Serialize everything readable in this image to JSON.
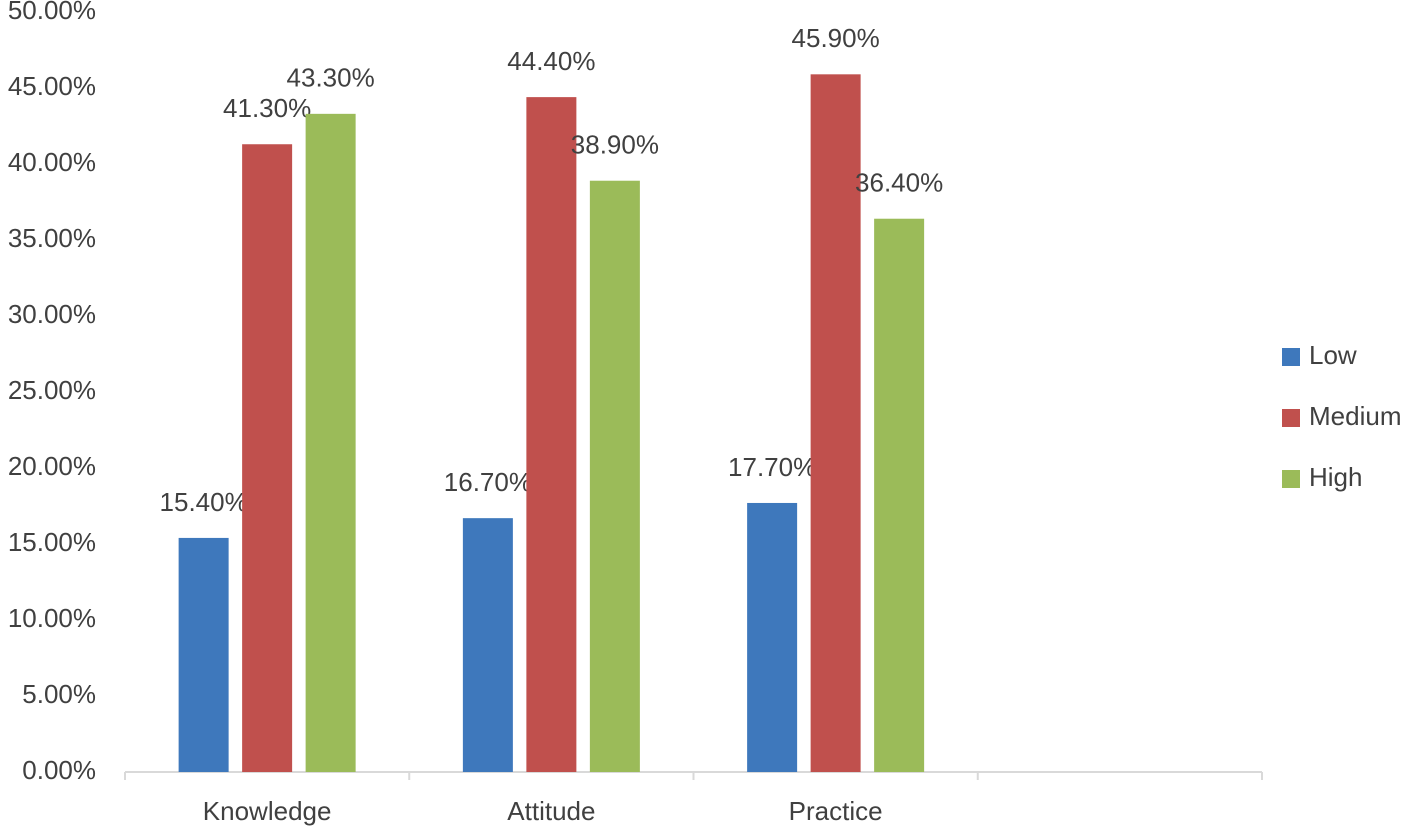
{
  "chart_data": {
    "type": "bar",
    "categories": [
      "Knowledge",
      "Attitude",
      "Practice",
      null
    ],
    "series": [
      {
        "name": "Low",
        "color": "#3e78bc",
        "values": [
          15.4,
          16.7,
          17.7,
          null
        ],
        "value_labels": [
          "15.40%",
          "16.70%",
          "17.70%",
          null
        ]
      },
      {
        "name": "Medium",
        "color": "#c0504d",
        "values": [
          41.3,
          44.4,
          45.9,
          null
        ],
        "value_labels": [
          "41.30%",
          "44.40%",
          "45.90%",
          null
        ]
      },
      {
        "name": "High",
        "color": "#9bbb59",
        "values": [
          43.3,
          38.9,
          36.4,
          null
        ],
        "value_labels": [
          "43.30%",
          "38.90%",
          "36.40%",
          null
        ]
      }
    ],
    "ylim": [
      0,
      50
    ],
    "yticks": [
      {
        "value": 0,
        "label": "0.00%"
      },
      {
        "value": 5,
        "label": "5.00%"
      },
      {
        "value": 10,
        "label": "10.00%"
      },
      {
        "value": 15,
        "label": "15.00%"
      },
      {
        "value": 20,
        "label": "20.00%"
      },
      {
        "value": 25,
        "label": "25.00%"
      },
      {
        "value": 30,
        "label": "30.00%"
      },
      {
        "value": 35,
        "label": "35.00%"
      },
      {
        "value": 40,
        "label": "40.00%"
      },
      {
        "value": 45,
        "label": "45.00%"
      },
      {
        "value": 50,
        "label": "50.00%"
      }
    ],
    "grid": false,
    "legend": "right"
  }
}
